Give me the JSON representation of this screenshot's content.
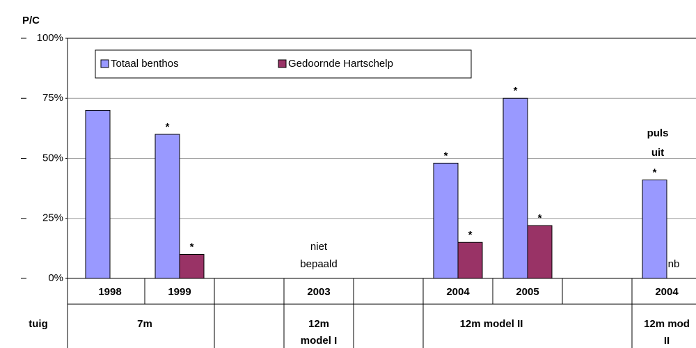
{
  "chart_data": {
    "type": "bar",
    "y_axis_label": "P/C",
    "categories": [
      "1998",
      "1999",
      null,
      "2003",
      null,
      "2004",
      "2005",
      null,
      "2004"
    ],
    "series": [
      {
        "name": "Totaal benthos",
        "color": "#9999ff",
        "values": [
          70,
          60,
          null,
          null,
          null,
          48,
          75,
          null,
          41
        ],
        "markers": [
          null,
          "*",
          null,
          null,
          null,
          "*",
          "*",
          null,
          "*"
        ]
      },
      {
        "name": "Gedoornde Hartschelp",
        "color": "#993366",
        "values": [
          null,
          10,
          null,
          null,
          null,
          15,
          22,
          null,
          null
        ],
        "markers": [
          null,
          "*",
          null,
          null,
          null,
          "*",
          "*",
          null,
          null
        ]
      }
    ],
    "ylim": [
      0,
      100
    ],
    "yticks": [
      {
        "value": 0,
        "label": "0%"
      },
      {
        "value": 25,
        "label": "25%"
      },
      {
        "value": 50,
        "label": "50%"
      },
      {
        "value": 75,
        "label": "75%"
      },
      {
        "value": 100,
        "label": "100%"
      }
    ],
    "grid": true,
    "legend": "top-left",
    "notes": {
      "niet_bepaald": [
        "niet",
        "bepaald"
      ],
      "puls_uit": [
        "puls",
        "uit"
      ],
      "nb": "nb"
    },
    "row_label": "tuig",
    "groups": [
      [
        "7m"
      ],
      [
        "12m",
        "model I"
      ],
      [
        "12m model II"
      ],
      [
        "12m mod",
        "II"
      ]
    ]
  }
}
